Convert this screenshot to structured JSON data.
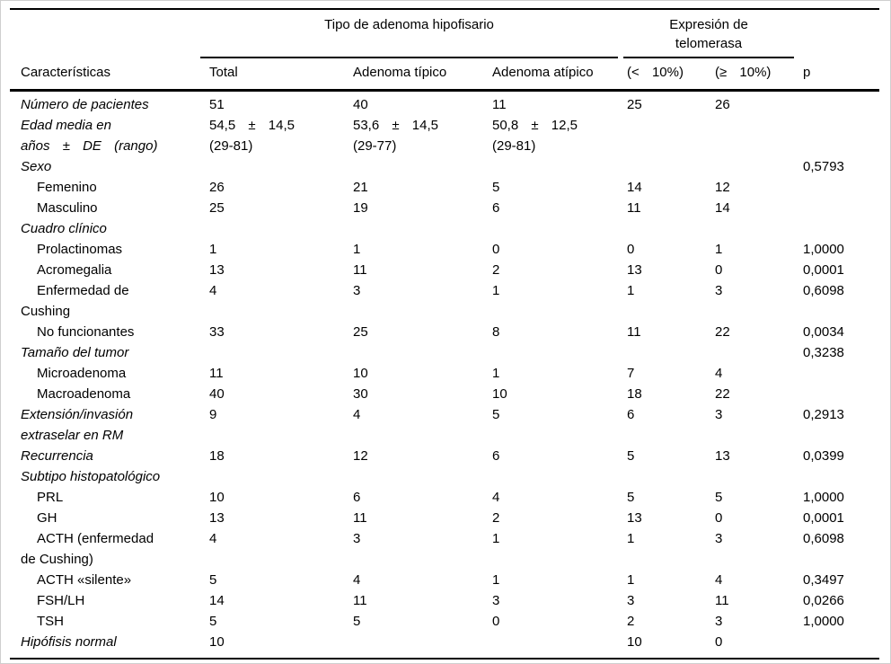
{
  "table": {
    "header": {
      "feature_col": "Características",
      "groups": [
        {
          "title": "Tipo de adenoma hipofisario",
          "columns": [
            "Total",
            "Adenoma típico",
            "Adenoma atípico"
          ]
        },
        {
          "title": "Expresión de telomerasa",
          "columns": [
            "(< 10%)",
            "(≥ 10%)"
          ]
        }
      ],
      "p_col": "p"
    },
    "rows": [
      {
        "italic": true,
        "label_lines": [
          {
            "text": "Número de pacientes",
            "indent": 0
          }
        ],
        "cells": [
          "51",
          "40",
          "11",
          "25",
          "26",
          ""
        ]
      },
      {
        "italic": true,
        "label_lines": [
          {
            "text": "Edad media en",
            "indent": 0
          },
          {
            "text": "años ± DE (rango)",
            "indent": 0
          }
        ],
        "cells": [
          [
            "54,5 ± 14,5",
            "(29-81)"
          ],
          [
            "53,6 ± 14,5",
            "(29-77)"
          ],
          [
            "50,8 ± 12,5",
            "(29-81)"
          ],
          "",
          "",
          ""
        ]
      },
      {
        "italic": true,
        "label_lines": [
          {
            "text": "Sexo",
            "indent": 0
          }
        ],
        "cells": [
          "",
          "",
          "",
          "",
          "",
          "0,5793"
        ]
      },
      {
        "italic": false,
        "label_lines": [
          {
            "text": "Femenino",
            "indent": 1
          }
        ],
        "cells": [
          "26",
          "21",
          "5",
          "14",
          "12",
          ""
        ]
      },
      {
        "italic": false,
        "label_lines": [
          {
            "text": "Masculino",
            "indent": 1
          }
        ],
        "cells": [
          "25",
          "19",
          "6",
          "11",
          "14",
          ""
        ]
      },
      {
        "italic": true,
        "label_lines": [
          {
            "text": "Cuadro clínico",
            "indent": 0
          }
        ],
        "cells": [
          "",
          "",
          "",
          "",
          "",
          ""
        ]
      },
      {
        "italic": false,
        "label_lines": [
          {
            "text": "Prolactinomas",
            "indent": 1
          }
        ],
        "cells": [
          "1",
          "1",
          "0",
          "0",
          "1",
          "1,0000"
        ]
      },
      {
        "italic": false,
        "label_lines": [
          {
            "text": "Acromegalia",
            "indent": 1
          }
        ],
        "cells": [
          "13",
          "11",
          "2",
          "13",
          "0",
          "0,0001"
        ]
      },
      {
        "italic": false,
        "label_lines": [
          {
            "text": "Enfermedad de",
            "indent": 1
          },
          {
            "text": "Cushing",
            "indent": 0
          }
        ],
        "cells": [
          "4",
          "3",
          "1",
          "1",
          "3",
          "0,6098"
        ]
      },
      {
        "italic": false,
        "label_lines": [
          {
            "text": "No funcionantes",
            "indent": 1
          }
        ],
        "cells": [
          "33",
          "25",
          "8",
          "11",
          "22",
          "0,0034"
        ]
      },
      {
        "italic": true,
        "label_lines": [
          {
            "text": "Tamaño del tumor",
            "indent": 0
          }
        ],
        "cells": [
          "",
          "",
          "",
          "",
          "",
          "0,3238"
        ]
      },
      {
        "italic": false,
        "label_lines": [
          {
            "text": "Microadenoma",
            "indent": 1
          }
        ],
        "cells": [
          "11",
          "10",
          "1",
          "7",
          "4",
          ""
        ]
      },
      {
        "italic": false,
        "label_lines": [
          {
            "text": "Macroadenoma",
            "indent": 1
          }
        ],
        "cells": [
          "40",
          "30",
          "10",
          "18",
          "22",
          ""
        ]
      },
      {
        "italic": true,
        "label_lines": [
          {
            "text": "Extensión/invasión",
            "indent": 0
          },
          {
            "text": "extraselar en RM",
            "indent": 0
          }
        ],
        "cells": [
          "9",
          "4",
          "5",
          "6",
          "3",
          "0,2913"
        ]
      },
      {
        "italic": true,
        "label_lines": [
          {
            "text": "Recurrencia",
            "indent": 0
          }
        ],
        "cells": [
          "18",
          "12",
          "6",
          "5",
          "13",
          "0,0399"
        ]
      },
      {
        "italic": true,
        "label_lines": [
          {
            "text": "Subtipo histopatológico",
            "indent": 0
          }
        ],
        "cells": [
          "",
          "",
          "",
          "",
          "",
          ""
        ]
      },
      {
        "italic": false,
        "label_lines": [
          {
            "text": "PRL",
            "indent": 1
          }
        ],
        "cells": [
          "10",
          "6",
          "4",
          "5",
          "5",
          "1,0000"
        ]
      },
      {
        "italic": false,
        "label_lines": [
          {
            "text": "GH",
            "indent": 1
          }
        ],
        "cells": [
          "13",
          "11",
          "2",
          "13",
          "0",
          "0,0001"
        ]
      },
      {
        "italic": false,
        "label_lines": [
          {
            "text": "ACTH (enfermedad",
            "indent": 1
          },
          {
            "text": "de Cushing)",
            "indent": 0
          }
        ],
        "cells": [
          "4",
          "3",
          "1",
          "1",
          "3",
          "0,6098"
        ]
      },
      {
        "italic": false,
        "label_lines": [
          {
            "text": "ACTH «silente»",
            "indent": 1
          }
        ],
        "cells": [
          "5",
          "4",
          "1",
          "1",
          "4",
          "0,3497"
        ]
      },
      {
        "italic": false,
        "label_lines": [
          {
            "text": "FSH/LH",
            "indent": 1
          }
        ],
        "cells": [
          "14",
          "11",
          "3",
          "3",
          "11",
          "0,0266"
        ]
      },
      {
        "italic": false,
        "label_lines": [
          {
            "text": "TSH",
            "indent": 1
          }
        ],
        "cells": [
          "5",
          "5",
          "0",
          "2",
          "3",
          "1,0000"
        ]
      },
      {
        "italic": true,
        "label_lines": [
          {
            "text": "Hipófisis normal",
            "indent": 0
          }
        ],
        "cells": [
          "10",
          "",
          "",
          "10",
          "0",
          ""
        ]
      }
    ]
  }
}
